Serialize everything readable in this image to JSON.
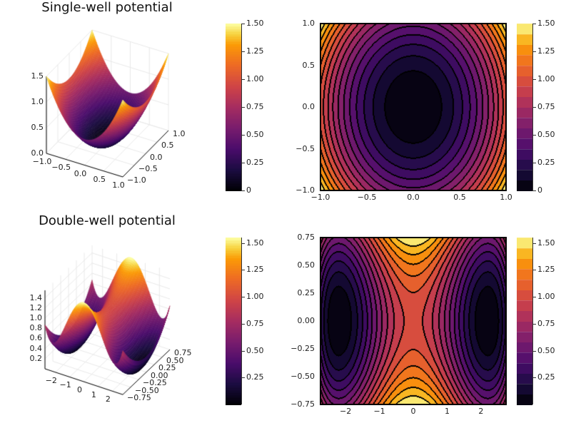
{
  "colors": {
    "colormap": "inferno",
    "contour_line": "#000000",
    "grid": "#e6e6e6"
  },
  "chart_data": [
    {
      "type": "surface",
      "title": "Single-well potential",
      "colormap": "inferno",
      "xlim": [
        -1,
        1
      ],
      "ylim": [
        -1,
        1
      ],
      "zlim": [
        0,
        1.5
      ],
      "x_ticks": [
        {
          "v": -1,
          "label": "−1.0"
        },
        {
          "v": -0.5,
          "label": "−0.5"
        },
        {
          "v": 0,
          "label": "0.0"
        },
        {
          "v": 0.5,
          "label": "0.5"
        },
        {
          "v": 1,
          "label": "1.0"
        }
      ],
      "y_ticks": [
        {
          "v": -1,
          "label": "−1.0"
        },
        {
          "v": -0.5,
          "label": "−0.5"
        },
        {
          "v": 0,
          "label": "0.0"
        },
        {
          "v": 0.5,
          "label": "0.5"
        },
        {
          "v": 1,
          "label": "1.0"
        }
      ],
      "z_ticks": [
        {
          "v": 0,
          "label": "0.0"
        },
        {
          "v": 0.5,
          "label": "0.5"
        },
        {
          "v": 1,
          "label": "1.0"
        },
        {
          "v": 1.5,
          "label": "1.5"
        }
      ],
      "sample_x": [
        -1,
        -0.5,
        0,
        0.5,
        1
      ],
      "sample_y": [
        -1,
        -0.5,
        0,
        0.5,
        1
      ],
      "z_samples": [
        [
          1.5,
          0.75,
          0.5,
          0.75,
          1.5
        ],
        [
          1.125,
          0.375,
          0.125,
          0.375,
          1.125
        ],
        [
          1.0,
          0.25,
          0.0,
          0.25,
          1.0
        ],
        [
          1.125,
          0.375,
          0.125,
          0.375,
          1.125
        ],
        [
          1.5,
          0.75,
          0.5,
          0.75,
          1.5
        ]
      ],
      "colorbar": {
        "lim": [
          0,
          1.5
        ],
        "ticks": [
          {
            "v": 0,
            "label": "0"
          },
          {
            "v": 0.25,
            "label": "0.25"
          },
          {
            "v": 0.5,
            "label": "0.50"
          },
          {
            "v": 0.75,
            "label": "0.75"
          },
          {
            "v": 1,
            "label": "1.00"
          },
          {
            "v": 1.25,
            "label": "1.25"
          },
          {
            "v": 1.5,
            "label": "1.50"
          }
        ]
      }
    },
    {
      "type": "heatmap",
      "style": "filled contour",
      "colormap": "inferno",
      "levels": 16,
      "xlim": [
        -1,
        1
      ],
      "ylim": [
        -1,
        1
      ],
      "x_ticks": [
        {
          "v": -1,
          "label": "−1.0"
        },
        {
          "v": -0.5,
          "label": "−0.5"
        },
        {
          "v": 0,
          "label": "0.0"
        },
        {
          "v": 0.5,
          "label": "0.5"
        },
        {
          "v": 1,
          "label": "1.0"
        }
      ],
      "y_ticks": [
        {
          "v": -1,
          "label": "−1.0"
        },
        {
          "v": -0.5,
          "label": "−0.5"
        },
        {
          "v": 0,
          "label": "0.0"
        },
        {
          "v": 0.5,
          "label": "0.5"
        },
        {
          "v": 1,
          "label": "1.0"
        }
      ],
      "colorbar": {
        "lim": [
          0,
          1.5
        ],
        "ticks": [
          {
            "v": 0,
            "label": "0"
          },
          {
            "v": 0.25,
            "label": "0.25"
          },
          {
            "v": 0.5,
            "label": "0.50"
          },
          {
            "v": 0.75,
            "label": "0.75"
          },
          {
            "v": 1,
            "label": "1.00"
          },
          {
            "v": 1.25,
            "label": "1.25"
          },
          {
            "v": 1.5,
            "label": "1.50"
          }
        ]
      }
    },
    {
      "type": "surface",
      "title": "Double-well potential",
      "colormap": "inferno",
      "xlim": [
        -2.74,
        2.74
      ],
      "ylim": [
        -0.75,
        0.75
      ],
      "zlim": [
        0,
        1.55
      ],
      "x_ticks": [
        {
          "v": -2,
          "label": "−2"
        },
        {
          "v": -1,
          "label": "−1"
        },
        {
          "v": 0,
          "label": "0"
        },
        {
          "v": 1,
          "label": "1"
        },
        {
          "v": 2,
          "label": "2"
        }
      ],
      "y_ticks": [
        {
          "v": -0.75,
          "label": "−0.75"
        },
        {
          "v": -0.5,
          "label": "−0.50"
        },
        {
          "v": -0.25,
          "label": "−0.25"
        },
        {
          "v": 0,
          "label": "0.00"
        },
        {
          "v": 0.25,
          "label": "0.25"
        },
        {
          "v": 0.5,
          "label": "0.50"
        },
        {
          "v": 0.75,
          "label": "0.75"
        }
      ],
      "z_ticks": [
        {
          "v": 0.2,
          "label": "0.2"
        },
        {
          "v": 0.4,
          "label": "0.4"
        },
        {
          "v": 0.6,
          "label": "0.6"
        },
        {
          "v": 0.8,
          "label": "0.8"
        },
        {
          "v": 1.0,
          "label": "1.0"
        },
        {
          "v": 1.2,
          "label": "1.2"
        },
        {
          "v": 1.4,
          "label": "1.4"
        }
      ],
      "sample_x": [
        -2.74,
        -2.2,
        -1,
        0,
        1,
        2.2,
        2.74
      ],
      "sample_y": [
        -0.75,
        0,
        0.75
      ],
      "z_samples": [
        [
          0.87,
          0.56,
          0.71,
          1.56,
          0.71,
          0.56,
          0.87
        ],
        [
          0.3,
          0.0,
          0.62,
          1.0,
          0.62,
          0.0,
          0.3
        ],
        [
          0.87,
          0.56,
          0.71,
          1.56,
          0.71,
          0.56,
          0.87
        ]
      ],
      "colorbar": {
        "lim": [
          0,
          1.55
        ],
        "ticks": [
          {
            "v": 0.25,
            "label": "0.25"
          },
          {
            "v": 0.5,
            "label": "0.50"
          },
          {
            "v": 0.75,
            "label": "0.75"
          },
          {
            "v": 1,
            "label": "1.00"
          },
          {
            "v": 1.25,
            "label": "1.25"
          },
          {
            "v": 1.5,
            "label": "1.50"
          }
        ]
      }
    },
    {
      "type": "heatmap",
      "style": "filled contour",
      "colormap": "inferno",
      "levels": 16,
      "xlim": [
        -2.74,
        2.74
      ],
      "ylim": [
        -0.75,
        0.75
      ],
      "x_ticks": [
        {
          "v": -2,
          "label": "−2"
        },
        {
          "v": -1,
          "label": "−1"
        },
        {
          "v": 0,
          "label": "0"
        },
        {
          "v": 1,
          "label": "1"
        },
        {
          "v": 2,
          "label": "2"
        }
      ],
      "y_ticks": [
        {
          "v": -0.75,
          "label": "−0.75"
        },
        {
          "v": -0.5,
          "label": "−0.50"
        },
        {
          "v": -0.25,
          "label": "−0.25"
        },
        {
          "v": 0,
          "label": "0.00"
        },
        {
          "v": 0.25,
          "label": "0.25"
        },
        {
          "v": 0.5,
          "label": "0.50"
        },
        {
          "v": 0.75,
          "label": "0.75"
        }
      ],
      "colorbar": {
        "lim": [
          0,
          1.55
        ],
        "ticks": [
          {
            "v": 0.25,
            "label": "0.25"
          },
          {
            "v": 0.5,
            "label": "0.50"
          },
          {
            "v": 0.75,
            "label": "0.75"
          },
          {
            "v": 1,
            "label": "1.00"
          },
          {
            "v": 1.25,
            "label": "1.25"
          },
          {
            "v": 1.5,
            "label": "1.50"
          }
        ]
      }
    }
  ]
}
